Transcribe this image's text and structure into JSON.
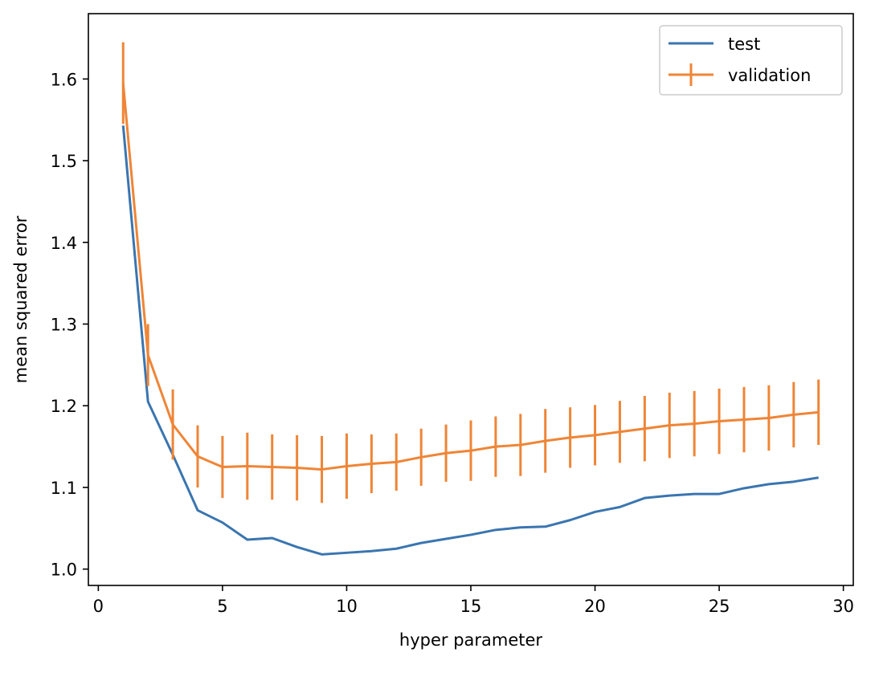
{
  "chart_data": {
    "type": "line",
    "xlabel": "hyper parameter",
    "ylabel": "mean squared error",
    "xlim": [
      -0.4,
      30.4
    ],
    "ylim": [
      0.98,
      1.68
    ],
    "xticks": [
      0,
      5,
      10,
      15,
      20,
      25,
      30
    ],
    "xtick_labels": [
      "0",
      "5",
      "10",
      "15",
      "20",
      "25",
      "30"
    ],
    "yticks": [
      1.0,
      1.1,
      1.2,
      1.3,
      1.4,
      1.5,
      1.6
    ],
    "ytick_labels": [
      "1.0",
      "1.1",
      "1.2",
      "1.3",
      "1.4",
      "1.5",
      "1.6"
    ],
    "grid": false,
    "legend_position": "top-right",
    "x": [
      1,
      2,
      3,
      4,
      5,
      6,
      7,
      8,
      9,
      10,
      11,
      12,
      13,
      14,
      15,
      16,
      17,
      18,
      19,
      20,
      21,
      22,
      23,
      24,
      25,
      26,
      27,
      28,
      29
    ],
    "series": [
      {
        "name": "test",
        "color": "#3a75b0",
        "values": [
          1.543,
          1.205,
          1.14,
          1.072,
          1.057,
          1.036,
          1.038,
          1.027,
          1.018,
          1.02,
          1.022,
          1.025,
          1.032,
          1.037,
          1.042,
          1.048,
          1.051,
          1.052,
          1.06,
          1.07,
          1.076,
          1.087,
          1.09,
          1.092,
          1.092,
          1.099,
          1.104,
          1.107,
          1.112
        ]
      },
      {
        "name": "validation",
        "color": "#ef8536",
        "values": [
          1.595,
          1.262,
          1.177,
          1.138,
          1.125,
          1.126,
          1.125,
          1.124,
          1.122,
          1.126,
          1.129,
          1.131,
          1.137,
          1.142,
          1.145,
          1.15,
          1.152,
          1.157,
          1.161,
          1.164,
          1.168,
          1.172,
          1.176,
          1.178,
          1.181,
          1.183,
          1.185,
          1.189,
          1.192
        ],
        "errors": [
          0.05,
          0.038,
          0.043,
          0.038,
          0.038,
          0.041,
          0.04,
          0.04,
          0.041,
          0.04,
          0.036,
          0.035,
          0.035,
          0.035,
          0.037,
          0.037,
          0.038,
          0.039,
          0.037,
          0.037,
          0.038,
          0.04,
          0.04,
          0.04,
          0.04,
          0.04,
          0.04,
          0.04,
          0.04
        ]
      }
    ]
  }
}
